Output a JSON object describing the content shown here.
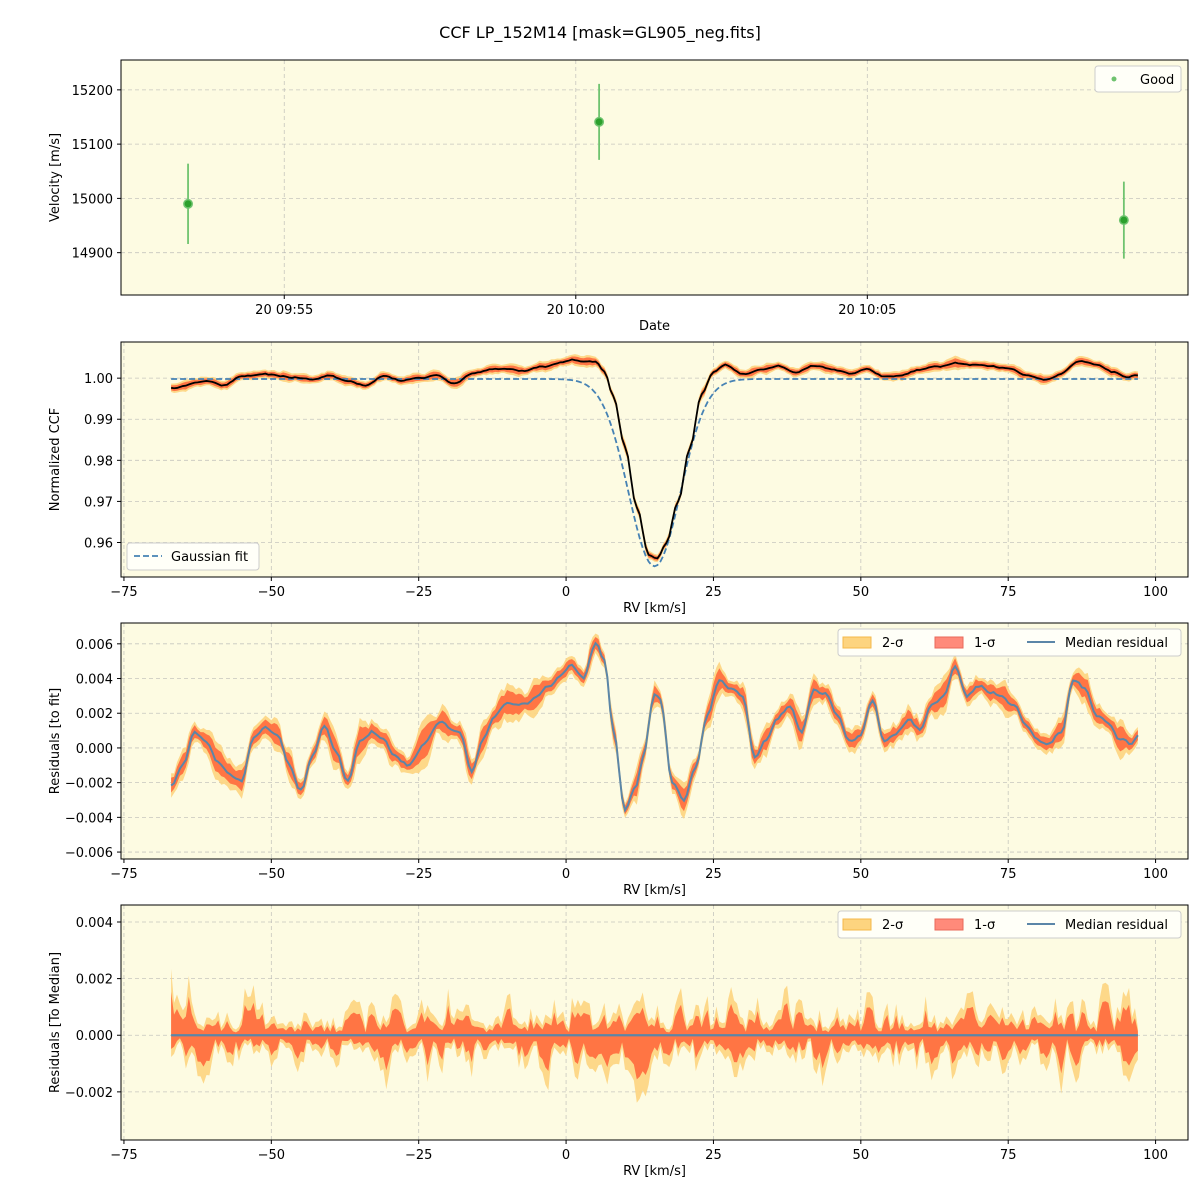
{
  "title": "CCF LP_152M14 [mask=GL905_neg.fits]",
  "colors": {
    "plot_bg": "#fdfbe2",
    "grid": "#b0b0b0",
    "good": "#2ca02c",
    "good_err": "#6fc36f",
    "gauss": "#4682b4",
    "ccf": "#000000",
    "sigma2": "#fdd47f",
    "sigma1": "#ff6a3d",
    "median": "#5b86a8"
  },
  "chart_data": [
    {
      "id": "velocity",
      "type": "scatter",
      "xlabel": "Date",
      "ylabel": "Velocity [m/s]",
      "xlim": [
        -2.8,
        15.5
      ],
      "ylim": [
        14822,
        15255
      ],
      "xticks": [
        0,
        5,
        10
      ],
      "xtick_labels": [
        "20 09:55",
        "20 10:00",
        "20 10:05"
      ],
      "yticks": [
        14900,
        15000,
        15100,
        15200
      ],
      "points": [
        {
          "x": -1.65,
          "y": 14990,
          "err": 74
        },
        {
          "x": 5.4,
          "y": 15141,
          "err": 70
        },
        {
          "x": 14.4,
          "y": 14960,
          "err": 71
        }
      ],
      "legend": {
        "position": "top-right",
        "label": "Good"
      }
    },
    {
      "id": "ccf",
      "type": "line",
      "xlabel": "RV [km/s]",
      "ylabel": "Normalized CCF",
      "xlim": [
        -75.5,
        105.5
      ],
      "ylim": [
        0.9516,
        1.0088
      ],
      "xticks": [
        -75,
        -50,
        -25,
        0,
        25,
        50,
        75,
        100
      ],
      "yticks": [
        0.96,
        0.97,
        0.98,
        0.99,
        1.0
      ],
      "ytick_labels": [
        "0.96",
        "0.97",
        "0.98",
        "0.99",
        "1.00"
      ],
      "gaussian_fit": {
        "center": 15.0,
        "depth": 0.0456,
        "sigma": 4.4,
        "continuum": 0.9998
      },
      "ccf_knots": [
        [
          -67,
          0.9975
        ],
        [
          -64,
          0.9985
        ],
        [
          -61,
          0.9993
        ],
        [
          -58,
          0.9985
        ],
        [
          -55,
          1.0003
        ],
        [
          -52,
          1.0008
        ],
        [
          -49,
          1.0005
        ],
        [
          -46,
          1.0002
        ],
        [
          -43,
          0.9996
        ],
        [
          -40,
          1.0008
        ],
        [
          -37,
          0.9992
        ],
        [
          -34,
          0.9985
        ],
        [
          -31,
          1.0007
        ],
        [
          -28,
          0.9994
        ],
        [
          -25,
          0.9998
        ],
        [
          -22,
          1.0008
        ],
        [
          -19,
          0.9988
        ],
        [
          -16,
          1.0012
        ],
        [
          -13,
          1.002
        ],
        [
          -10,
          1.0022
        ],
        [
          -7,
          1.002
        ],
        [
          -4,
          1.0028
        ],
        [
          -1,
          1.0036
        ],
        [
          1,
          1.0045
        ],
        [
          3,
          1.0038
        ],
        [
          5,
          1.0038
        ],
        [
          6.5,
          1.0015
        ],
        [
          8,
          0.9955
        ],
        [
          10,
          0.9835
        ],
        [
          12,
          0.9685
        ],
        [
          14,
          0.9572
        ],
        [
          15.5,
          0.9565
        ],
        [
          17,
          0.96
        ],
        [
          19,
          0.97
        ],
        [
          21,
          0.983
        ],
        [
          23,
          0.996
        ],
        [
          25,
          1.0015
        ],
        [
          27,
          1.0032
        ],
        [
          30,
          1.0008
        ],
        [
          33,
          1.002
        ],
        [
          36,
          1.0028
        ],
        [
          39,
          1.0015
        ],
        [
          42,
          1.003
        ],
        [
          45,
          1.0022
        ],
        [
          48,
          1.0012
        ],
        [
          51,
          1.0022
        ],
        [
          54,
          1.0005
        ],
        [
          57,
          1.0008
        ],
        [
          60,
          1.002
        ],
        [
          63,
          1.0028
        ],
        [
          66,
          1.004
        ],
        [
          69,
          1.0032
        ],
        [
          72,
          1.003
        ],
        [
          75,
          1.0025
        ],
        [
          78,
          1.001
        ],
        [
          81,
          0.9995
        ],
        [
          84,
          1.0012
        ],
        [
          87,
          1.004
        ],
        [
          90,
          1.0032
        ],
        [
          93,
          1.0015
        ],
        [
          95,
          1.0002
        ],
        [
          97,
          1.0008
        ]
      ],
      "legend": {
        "position": "bottom-left",
        "label": "Gaussian fit"
      }
    },
    {
      "id": "residuals_fit",
      "type": "area",
      "xlabel": "RV [km/s]",
      "ylabel": "Residuals [to fit]",
      "xlim": [
        -75.5,
        105.5
      ],
      "ylim": [
        -0.0064,
        0.0072
      ],
      "xticks": [
        -75,
        -50,
        -25,
        0,
        25,
        50,
        75,
        100
      ],
      "yticks": [
        -0.006,
        -0.004,
        -0.002,
        0.0,
        0.002,
        0.004,
        0.006
      ],
      "ytick_labels": [
        "−0.006",
        "−0.004",
        "−0.002",
        "0.000",
        "0.002",
        "0.004",
        "0.006"
      ],
      "median_knots": [
        [
          -67,
          -0.002
        ],
        [
          -65,
          -0.0008
        ],
        [
          -63,
          0.001
        ],
        [
          -61,
          0.0005
        ],
        [
          -59,
          -0.0008
        ],
        [
          -57,
          -0.0015
        ],
        [
          -55,
          -0.0018
        ],
        [
          -53,
          0.0005
        ],
        [
          -51,
          0.0013
        ],
        [
          -49,
          0.0008
        ],
        [
          -47,
          -0.001
        ],
        [
          -45,
          -0.0023
        ],
        [
          -43,
          -0.0005
        ],
        [
          -41,
          0.0012
        ],
        [
          -39,
          -0.0002
        ],
        [
          -37,
          -0.0018
        ],
        [
          -35,
          0.0003
        ],
        [
          -33,
          0.001
        ],
        [
          -31,
          0.0005
        ],
        [
          -29,
          -0.0005
        ],
        [
          -27,
          -0.001
        ],
        [
          -24,
          0.0002
        ],
        [
          -21,
          0.0015
        ],
        [
          -18,
          0.0008
        ],
        [
          -16,
          -0.0012
        ],
        [
          -14,
          0.0005
        ],
        [
          -12,
          0.0018
        ],
        [
          -10,
          0.0025
        ],
        [
          -7,
          0.0025
        ],
        [
          -5,
          0.003
        ],
        [
          -3,
          0.0035
        ],
        [
          -1,
          0.0042
        ],
        [
          1,
          0.0048
        ],
        [
          3,
          0.004
        ],
        [
          5,
          0.006
        ],
        [
          6.5,
          0.005
        ],
        [
          8,
          0.001
        ],
        [
          10,
          -0.0035
        ],
        [
          12,
          -0.0022
        ],
        [
          13,
          -0.0005
        ],
        [
          15,
          0.003
        ],
        [
          16,
          0.0028
        ],
        [
          18,
          -0.0018
        ],
        [
          20,
          -0.003
        ],
        [
          22,
          -0.001
        ],
        [
          24,
          0.002
        ],
        [
          26,
          0.004
        ],
        [
          28,
          0.0035
        ],
        [
          30,
          0.0028
        ],
        [
          32,
          -0.0005
        ],
        [
          34,
          0.0005
        ],
        [
          36,
          0.0018
        ],
        [
          38,
          0.0025
        ],
        [
          40,
          0.001
        ],
        [
          42,
          0.0034
        ],
        [
          44,
          0.003
        ],
        [
          46,
          0.0018
        ],
        [
          48,
          0.0005
        ],
        [
          50,
          0.0008
        ],
        [
          52,
          0.0028
        ],
        [
          54,
          0.0005
        ],
        [
          56,
          0.0008
        ],
        [
          58,
          0.0015
        ],
        [
          60,
          0.001
        ],
        [
          62,
          0.0025
        ],
        [
          64,
          0.003
        ],
        [
          66,
          0.0048
        ],
        [
          68,
          0.003
        ],
        [
          70,
          0.0035
        ],
        [
          72,
          0.0032
        ],
        [
          74,
          0.003
        ],
        [
          76,
          0.0025
        ],
        [
          78,
          0.0012
        ],
        [
          80,
          0.0005
        ],
        [
          82,
          0.0002
        ],
        [
          84,
          0.001
        ],
        [
          86,
          0.004
        ],
        [
          88,
          0.0035
        ],
        [
          90,
          0.0018
        ],
        [
          92,
          0.0015
        ],
        [
          94,
          0.0005
        ],
        [
          96,
          0.0003
        ],
        [
          97,
          0.001
        ]
      ],
      "band_half_width": {
        "sigma1": 0.0005,
        "sigma2": 0.0009
      },
      "legend": {
        "position": "top-right",
        "labels": [
          "2-σ",
          "1-σ",
          "Median residual"
        ]
      }
    },
    {
      "id": "residuals_median",
      "type": "area",
      "xlabel": "RV [km/s]",
      "ylabel": "Residuals [To Median]",
      "xlim": [
        -75.5,
        105.5
      ],
      "ylim": [
        -0.0037,
        0.0046
      ],
      "xticks": [
        -75,
        -50,
        -25,
        0,
        25,
        50,
        75,
        100
      ],
      "yticks": [
        -0.002,
        0.0,
        0.002,
        0.004
      ],
      "ytick_labels": [
        "−0.002",
        "0.000",
        "0.002",
        "0.004"
      ],
      "band_envelope": {
        "sigma1_scale": 0.0012,
        "sigma2_scale": 0.0018
      },
      "legend": {
        "position": "top-right",
        "labels": [
          "2-σ",
          "1-σ",
          "Median residual"
        ]
      }
    }
  ]
}
